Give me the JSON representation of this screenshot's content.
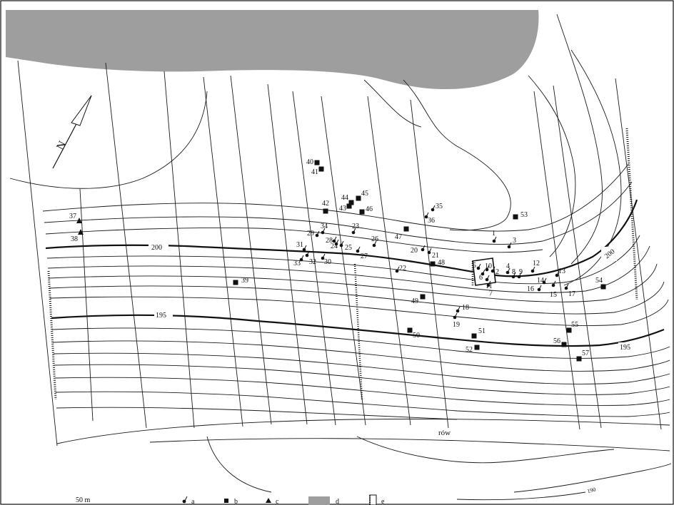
{
  "labels": {
    "north": "N",
    "ditch": "rów",
    "contour_200_left": "200",
    "contour_200_right": "200",
    "contour_195_left": "195",
    "contour_195_right": "195",
    "contour_190": "190"
  },
  "legend": {
    "scale": "50 m",
    "a": "a",
    "b": "b",
    "c": "c",
    "d": "d",
    "e": "e"
  },
  "colors": {
    "area_d": "#9e9e9e",
    "ink": "#111111"
  },
  "sites_a": [
    "1",
    "2",
    "3",
    "4",
    "5",
    "6",
    "7",
    "8",
    "9",
    "10",
    "11",
    "12",
    "13",
    "14",
    "15",
    "16",
    "17",
    "18",
    "19",
    "20",
    "21",
    "22",
    "23",
    "24",
    "25",
    "26",
    "27",
    "28",
    "29",
    "30",
    "31",
    "32",
    "33",
    "34",
    "35",
    "36"
  ],
  "sites_b": [
    "39",
    "40",
    "41",
    "42",
    "43",
    "44",
    "45",
    "46",
    "47",
    "48",
    "49",
    "50",
    "51",
    "52",
    "53",
    "54",
    "55",
    "56",
    "57"
  ],
  "sites_c": [
    "37",
    "38"
  ]
}
